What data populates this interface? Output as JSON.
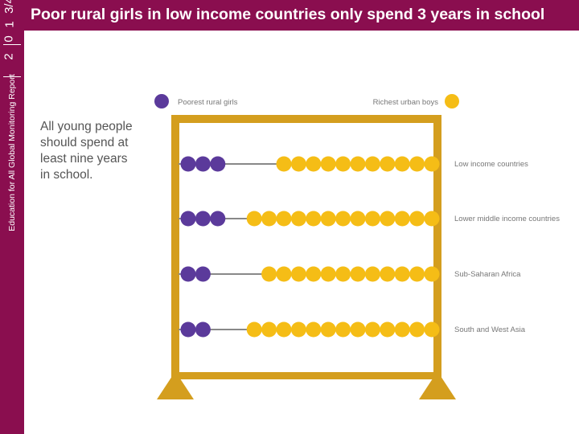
{
  "sidebar": {
    "year_digits": [
      "2",
      "0",
      "1",
      "3/4"
    ],
    "report_name": "Education for All Global Monitoring Report",
    "color": "#8a0e4f"
  },
  "header": {
    "title": "Poor rural girls in low income countries only spend 3 years in school"
  },
  "intro_text": "All young people\nshould spend at\nleast nine years\nin school.",
  "chart_data": {
    "type": "abacus",
    "legend": [
      {
        "name": "Poorest rural girls",
        "color": "#5b3a9b"
      },
      {
        "name": "Richest urban boys",
        "color": "#f5bd16"
      }
    ],
    "frame_color": "#d49e1e",
    "rod_color": "#888888",
    "rows": [
      {
        "label": "Low income countries",
        "poorest_rural_girls": 3,
        "richest_urban_boys": 11
      },
      {
        "label": "Lower middle income countries",
        "poorest_rural_girls": 3,
        "richest_urban_boys": 13
      },
      {
        "label": "Sub-Saharan Africa",
        "poorest_rural_girls": 2,
        "richest_urban_boys": 12
      },
      {
        "label": "South and West Asia",
        "poorest_rural_girls": 2,
        "richest_urban_boys": 13
      }
    ]
  }
}
